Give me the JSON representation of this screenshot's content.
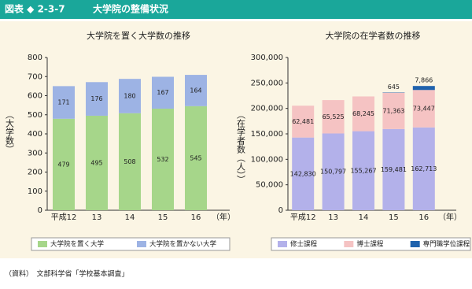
{
  "header": {
    "label": "図表 ◆ 2-3-7",
    "title": "大学院の整備状況"
  },
  "source": "（資料）　文部科学省「学校基本調査」",
  "chart_data": [
    {
      "type": "stacked_bar",
      "title": "大学院を置く大学数の推移",
      "y_label": "（大学数）",
      "x_unit": "（年）",
      "categories": [
        "平成12",
        "13",
        "14",
        "15",
        "16"
      ],
      "ylim": [
        0,
        800
      ],
      "yticks": [
        0,
        100,
        200,
        300,
        400,
        500,
        600,
        700,
        800
      ],
      "series": [
        {
          "name": "大学院を置く大学",
          "color": "#a6d68a",
          "values": [
            479,
            495,
            508,
            532,
            545
          ]
        },
        {
          "name": "大学院を置かない大学",
          "color": "#9db3e4",
          "values": [
            171,
            176,
            180,
            167,
            164
          ]
        }
      ]
    },
    {
      "type": "stacked_bar",
      "title": "大学院の在学者数の推移",
      "y_label": "（在学者数（人））",
      "x_unit": "（年）",
      "categories": [
        "平成12",
        "13",
        "14",
        "15",
        "16"
      ],
      "ylim": [
        0,
        300000
      ],
      "yticks": [
        0,
        {
          "value": 50000,
          "label": "50,000"
        },
        {
          "value": 100000,
          "label": "100,000"
        },
        {
          "value": 150000,
          "label": "150,000"
        },
        {
          "value": 200000,
          "label": "200,000"
        },
        {
          "value": 250000,
          "label": "250,000"
        },
        {
          "value": 300000,
          "label": "300,000"
        }
      ],
      "series": [
        {
          "name": "修士課程",
          "color": "#b3b1ea",
          "values": [
            142830,
            150797,
            155267,
            159481,
            162713
          ],
          "value_labels": [
            "142,830",
            "150,797",
            "155,267",
            "159,481",
            "162,713"
          ]
        },
        {
          "name": "博士課程",
          "color": "#f5c3c3",
          "values": [
            62481,
            65525,
            68245,
            71363,
            73447
          ],
          "value_labels": [
            "62,481",
            "65,525",
            "68,245",
            "71,363",
            "73,447"
          ]
        },
        {
          "name": "専門職学位課程",
          "color": "#1f62ad",
          "values": [
            null,
            null,
            null,
            645,
            7866
          ],
          "value_labels": [
            null,
            null,
            null,
            "645",
            "7,866"
          ]
        }
      ]
    }
  ]
}
